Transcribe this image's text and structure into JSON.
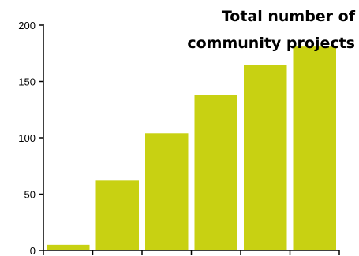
{
  "chart_data": {
    "type": "bar",
    "title_lines": [
      "Total number of",
      "community projects"
    ],
    "categories": [
      "",
      "",
      "",
      "",
      "",
      ""
    ],
    "values": [
      5,
      62,
      104,
      138,
      165,
      181
    ],
    "ylim": [
      0,
      200
    ],
    "yticks": [
      0,
      50,
      100,
      150,
      200
    ],
    "bar_color": "#c8d112",
    "axis_color": "#000000",
    "grid": false
  }
}
